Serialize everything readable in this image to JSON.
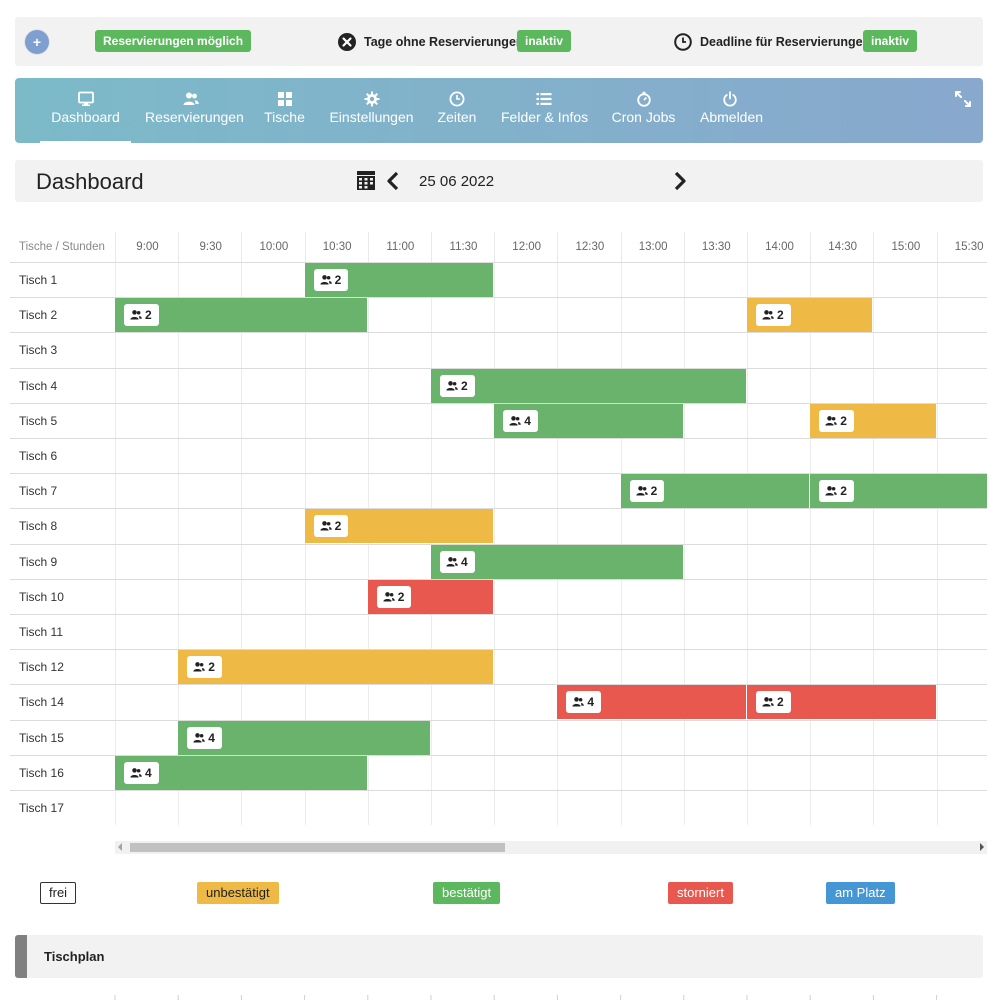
{
  "topbar": {
    "plus_label": "+",
    "reservations_possible": "Reservierungen möglich",
    "days_without_label": "Tage ohne Reservierungen",
    "days_without_status": "inaktiv",
    "deadline_label": "Deadline für Reservierungen",
    "deadline_status": "inaktiv"
  },
  "nav": {
    "items": [
      {
        "label": "Dashboard",
        "icon": "monitor-icon",
        "active": true
      },
      {
        "label": "Reservierungen",
        "icon": "users-icon"
      },
      {
        "label": "Tische",
        "icon": "grid-icon"
      },
      {
        "label": "Einstellungen",
        "icon": "gear-icon"
      },
      {
        "label": "Zeiten",
        "icon": "clock-icon"
      },
      {
        "label": "Felder & Infos",
        "icon": "list-icon"
      },
      {
        "label": "Cron Jobs",
        "icon": "stopwatch-icon"
      },
      {
        "label": "Abmelden",
        "icon": "power-icon"
      }
    ],
    "expand_icon": "expand-icon"
  },
  "dashboard": {
    "title": "Dashboard",
    "date": "25 06 2022"
  },
  "schedule": {
    "corner_label": "Tische / Stunden",
    "times": [
      "9:00",
      "9:30",
      "10:00",
      "10:30",
      "11:00",
      "11:30",
      "12:00",
      "12:30",
      "13:00",
      "13:30",
      "14:00",
      "14:30",
      "15:00",
      "15:30"
    ],
    "tables": [
      "Tisch 1",
      "Tisch 2",
      "Tisch 3",
      "Tisch 4",
      "Tisch 5",
      "Tisch 6",
      "Tisch 7",
      "Tisch 8",
      "Tisch 9",
      "Tisch 10",
      "Tisch 11",
      "Tisch 12",
      "Tisch 14",
      "Tisch 15",
      "Tisch 16",
      "Tisch 17"
    ],
    "reservations": [
      {
        "table": "Tisch 1",
        "start": "10:30",
        "end": "12:00",
        "status": "bestätigt",
        "persons": "2"
      },
      {
        "table": "Tisch 2",
        "start": "9:00",
        "end": "11:00",
        "status": "bestätigt",
        "persons": "2"
      },
      {
        "table": "Tisch 2",
        "start": "14:00",
        "end": "15:00",
        "status": "unbestätigt",
        "persons": "2"
      },
      {
        "table": "Tisch 4",
        "start": "11:30",
        "end": "14:00",
        "status": "bestätigt",
        "persons": "2"
      },
      {
        "table": "Tisch 5",
        "start": "12:00",
        "end": "13:30",
        "status": "bestätigt",
        "persons": "4"
      },
      {
        "table": "Tisch 5",
        "start": "14:30",
        "end": "15:30",
        "status": "unbestätigt",
        "persons": "2"
      },
      {
        "table": "Tisch 7",
        "start": "13:00",
        "end": "14:30",
        "status": "bestätigt",
        "persons": "2"
      },
      {
        "table": "Tisch 7",
        "start": "14:30",
        "end": "16:00",
        "status": "bestätigt",
        "persons": "2"
      },
      {
        "table": "Tisch 8",
        "start": "10:30",
        "end": "12:00",
        "status": "unbestätigt",
        "persons": "2"
      },
      {
        "table": "Tisch 9",
        "start": "11:30",
        "end": "13:30",
        "status": "bestätigt",
        "persons": "4"
      },
      {
        "table": "Tisch 10",
        "start": "11:00",
        "end": "12:00",
        "status": "storniert",
        "persons": "2"
      },
      {
        "table": "Tisch 12",
        "start": "9:30",
        "end": "12:00",
        "status": "unbestätigt",
        "persons": "2"
      },
      {
        "table": "Tisch 14",
        "start": "12:30",
        "end": "14:00",
        "status": "storniert",
        "persons": "4"
      },
      {
        "table": "Tisch 14",
        "start": "14:00",
        "end": "15:30",
        "status": "storniert",
        "persons": "2"
      },
      {
        "table": "Tisch 15",
        "start": "9:30",
        "end": "11:30",
        "status": "bestätigt",
        "persons": "4"
      },
      {
        "table": "Tisch 16",
        "start": "9:00",
        "end": "11:00",
        "status": "bestätigt",
        "persons": "4"
      }
    ]
  },
  "legend": {
    "frei": "frei",
    "unbestaetigt": "unbestätigt",
    "bestaetigt": "bestätigt",
    "storniert": "storniert",
    "am_platz": "am Platz"
  },
  "colors": {
    "confirmed": "#69b36d",
    "unconfirmed": "#eeba45",
    "cancelled": "#e8584f",
    "at_table": "#4596d4"
  },
  "tischplan": {
    "title": "Tischplan"
  }
}
